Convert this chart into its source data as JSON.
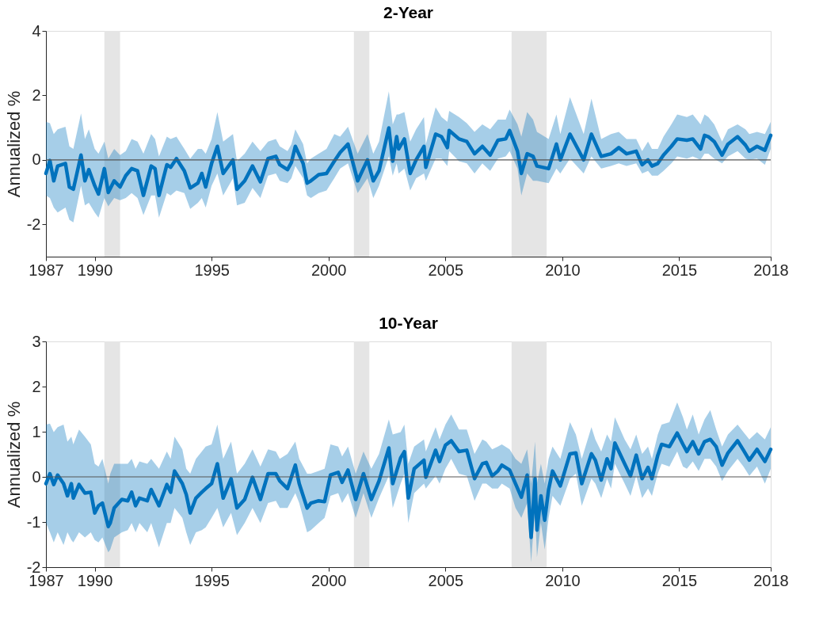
{
  "chart_data": [
    {
      "type": "line",
      "title": "2-Year",
      "ylabel": "Annualized %",
      "x": [
        "1987-12",
        "1988-02",
        "1988-04",
        "1988-06",
        "1988-10",
        "1988-12",
        "1989-02",
        "1989-06",
        "1989-08",
        "1989-10",
        "1990-01",
        "1990-03",
        "1990-06",
        "1990-08",
        "1990-11",
        "1991-02",
        "1991-05",
        "1991-08",
        "1991-11",
        "1992-02",
        "1992-06",
        "1992-08",
        "1992-10",
        "1993-02",
        "1993-04",
        "1993-07",
        "1993-11",
        "1994-02",
        "1994-06",
        "1994-08",
        "1994-10",
        "1995-01",
        "1995-04",
        "1995-07",
        "1995-12",
        "1996-02",
        "1996-06",
        "1996-10",
        "1997-02",
        "1997-06",
        "1997-10",
        "1997-12",
        "1998-04",
        "1998-06",
        "1998-08",
        "1998-12",
        "1999-02",
        "1999-04",
        "1999-08",
        "1999-12",
        "2000-04",
        "2000-07",
        "2000-11",
        "2001-04",
        "2001-09",
        "2001-12",
        "2002-03",
        "2002-08",
        "2002-10",
        "2002-12",
        "2003-01",
        "2003-04",
        "2003-07",
        "2003-10",
        "2004-02",
        "2004-03",
        "2004-08",
        "2004-11",
        "2005-02",
        "2005-03",
        "2005-08",
        "2005-12",
        "2006-04",
        "2006-08",
        "2006-12",
        "2007-04",
        "2007-08",
        "2007-10",
        "2008-02",
        "2008-04",
        "2008-07",
        "2008-10",
        "2008-12",
        "2009-06",
        "2009-10",
        "2009-12",
        "2010-05",
        "2010-12",
        "2011-04",
        "2011-09",
        "2012-02",
        "2012-06",
        "2012-10",
        "2013-03",
        "2013-06",
        "2013-09",
        "2013-11",
        "2014-02",
        "2014-05",
        "2014-09",
        "2014-12",
        "2015-05",
        "2015-08",
        "2015-12",
        "2016-02",
        "2016-04",
        "2016-07",
        "2016-11",
        "2017-02",
        "2017-07",
        "2017-11",
        "2018-01",
        "2018-05",
        "2018-09",
        "2018-12"
      ],
      "series": [
        {
          "color": "#0072bd",
          "values": [
            -0.42,
            -0.02,
            -0.65,
            -0.19,
            -0.11,
            -0.84,
            -0.91,
            0.15,
            -0.65,
            -0.3,
            -0.8,
            -1.06,
            -0.27,
            -1.01,
            -0.65,
            -0.84,
            -0.49,
            -0.27,
            -0.34,
            -1.1,
            -0.19,
            -0.27,
            -1.1,
            -0.15,
            -0.23,
            0.04,
            -0.34,
            -0.87,
            -0.72,
            -0.42,
            -0.84,
            -0.11,
            0.42,
            -0.42,
            0.0,
            -0.91,
            -0.65,
            -0.19,
            -0.68,
            0.04,
            0.11,
            -0.15,
            -0.3,
            -0.08,
            0.42,
            -0.11,
            -0.72,
            -0.65,
            -0.46,
            -0.42,
            -0.04,
            0.23,
            0.49,
            -0.65,
            0.0,
            -0.65,
            -0.34,
            0.99,
            -0.04,
            0.72,
            0.34,
            0.65,
            -0.42,
            0.0,
            0.42,
            -0.23,
            0.8,
            0.72,
            0.38,
            0.91,
            0.65,
            0.57,
            0.19,
            0.42,
            0.15,
            0.61,
            0.65,
            0.91,
            0.27,
            -0.42,
            0.19,
            0.11,
            -0.19,
            -0.27,
            0.49,
            0.0,
            0.8,
            0.0,
            0.8,
            0.11,
            0.19,
            0.38,
            0.19,
            0.27,
            -0.15,
            0.0,
            -0.19,
            -0.11,
            0.15,
            0.42,
            0.65,
            0.61,
            0.65,
            0.34,
            0.76,
            0.72,
            0.57,
            0.15,
            0.49,
            0.72,
            0.46,
            0.27,
            0.42,
            0.3,
            0.76
          ],
          "lower": [
            -1.1,
            -1.18,
            -1.48,
            -1.63,
            -1.48,
            -1.86,
            -1.94,
            -0.8,
            -1.41,
            -1.33,
            -1.63,
            -1.79,
            -1.18,
            -1.44,
            -1.18,
            -1.25,
            -1.18,
            -1.03,
            -1.18,
            -1.71,
            -1.1,
            -1.1,
            -1.79,
            -1.03,
            -1.1,
            -0.95,
            -1.03,
            -1.52,
            -1.33,
            -1.18,
            -1.48,
            -0.8,
            -0.42,
            -1.1,
            -0.57,
            -1.41,
            -1.33,
            -0.87,
            -1.18,
            -0.49,
            -0.42,
            -0.65,
            -0.72,
            -0.57,
            -0.19,
            -0.57,
            -1.1,
            -1.18,
            -1.03,
            -0.95,
            -0.57,
            -0.27,
            -0.11,
            -1.03,
            -0.57,
            -1.18,
            -0.8,
            0.11,
            -0.49,
            -0.11,
            -0.42,
            -0.27,
            -0.95,
            -0.57,
            -0.42,
            -0.65,
            0.04,
            0.04,
            -0.19,
            0.27,
            -0.04,
            -0.11,
            -0.42,
            -0.11,
            -0.34,
            0.04,
            0.11,
            0.27,
            -0.27,
            -1.1,
            -0.42,
            -0.65,
            -0.65,
            -0.72,
            -0.27,
            -0.42,
            0.04,
            -0.42,
            0.11,
            -0.27,
            -0.19,
            -0.11,
            -0.19,
            -0.11,
            -0.42,
            -0.34,
            -0.49,
            -0.49,
            -0.34,
            -0.11,
            0.11,
            0.04,
            0.11,
            0.0,
            0.19,
            0.19,
            0.04,
            -0.11,
            0.11,
            0.27,
            0.04,
            0.0,
            0.04,
            -0.15,
            0.34
          ],
          "upper": [
            1.18,
            1.14,
            0.8,
            0.95,
            1.03,
            0.42,
            0.34,
            1.44,
            0.65,
            0.95,
            0.34,
            0.19,
            0.57,
            0.04,
            0.34,
            0.15,
            0.27,
            0.65,
            0.57,
            0.19,
            0.8,
            0.65,
            0.11,
            0.72,
            0.65,
            0.72,
            0.34,
            0.04,
            0.34,
            0.34,
            0.19,
            0.65,
            1.48,
            0.57,
            0.8,
            -0.04,
            0.19,
            0.57,
            0.27,
            0.57,
            0.65,
            0.42,
            0.27,
            0.49,
            0.95,
            0.49,
            -0.11,
            0.04,
            0.19,
            0.34,
            0.8,
            0.72,
            1.03,
            0.19,
            0.8,
            0.19,
            0.57,
            2.13,
            1.1,
            1.41,
            1.41,
            1.48,
            0.57,
            0.95,
            1.33,
            0.49,
            1.63,
            1.33,
            1.18,
            1.52,
            1.33,
            1.14,
            0.87,
            1.1,
            0.95,
            1.25,
            1.25,
            1.56,
            1.1,
            0.72,
            1.48,
            1.25,
            0.87,
            0.65,
            1.41,
            0.8,
            1.94,
            0.8,
            1.9,
            0.65,
            0.8,
            0.87,
            0.65,
            0.65,
            0.27,
            0.57,
            0.34,
            0.34,
            0.72,
            1.1,
            1.41,
            1.33,
            1.41,
            1.1,
            1.41,
            1.33,
            1.1,
            0.57,
            0.95,
            1.1,
            0.95,
            0.8,
            0.87,
            0.8,
            1.18
          ]
        }
      ],
      "xlim": [
        "1987-12",
        "2018-12"
      ],
      "xticks": [
        {
          "value": "1987-12",
          "label": "1987"
        },
        "1990",
        "1995",
        "2000",
        "2005",
        "2010",
        "2015",
        {
          "value": "2018-12",
          "label": "2018"
        }
      ],
      "ylim": [
        -3,
        4
      ],
      "yticks": [
        -2,
        0,
        2,
        4
      ],
      "ref_lines": [
        {
          "axis": "y",
          "value": 0,
          "color": "#555555"
        }
      ],
      "bands": [
        {
          "axis": "x",
          "from": "1990-06",
          "to": "1991-02",
          "color": "#e5e5e5"
        },
        {
          "axis": "x",
          "from": "2001-02",
          "to": "2001-10",
          "color": "#e5e5e5"
        },
        {
          "axis": "x",
          "from": "2007-11",
          "to": "2009-05",
          "color": "#e5e5e5"
        }
      ],
      "grid": false
    },
    {
      "type": "line",
      "title": "10-Year",
      "ylabel": "Annualized %",
      "x": [
        "1987-12",
        "1988-02",
        "1988-04",
        "1988-06",
        "1988-09",
        "1988-11",
        "1989-01",
        "1989-02",
        "1989-05",
        "1989-08",
        "1989-11",
        "1990-01",
        "1990-03",
        "1990-05",
        "1990-08",
        "1990-09",
        "1990-11",
        "1991-03",
        "1991-06",
        "1991-08",
        "1991-10",
        "1991-12",
        "1992-04",
        "1992-06",
        "1992-10",
        "1993-02",
        "1993-04",
        "1993-06",
        "1993-10",
        "1993-12",
        "1994-02",
        "1994-05",
        "1994-08",
        "1994-10",
        "1995-01",
        "1995-04",
        "1995-07",
        "1995-11",
        "1996-02",
        "1996-06",
        "1996-10",
        "1997-02",
        "1997-06",
        "1997-10",
        "1997-12",
        "1998-04",
        "1998-08",
        "1998-10",
        "1999-02",
        "1999-04",
        "1999-08",
        "1999-11",
        "2000-02",
        "2000-06",
        "2000-08",
        "2000-11",
        "2001-03",
        "2001-07",
        "2001-11",
        "2002-03",
        "2002-08",
        "2002-10",
        "2003-02",
        "2003-04",
        "2003-06",
        "2003-09",
        "2004-02",
        "2004-03",
        "2004-08",
        "2004-10",
        "2005-01",
        "2005-04",
        "2005-08",
        "2005-12",
        "2006-04",
        "2006-08",
        "2006-10",
        "2007-01",
        "2007-04",
        "2007-06",
        "2007-10",
        "2008-01",
        "2008-04",
        "2008-07",
        "2008-09",
        "2008-11",
        "2008-12",
        "2009-02",
        "2009-04",
        "2009-06",
        "2009-08",
        "2009-12",
        "2010-05",
        "2010-08",
        "2010-11",
        "2011-04",
        "2011-06",
        "2011-09",
        "2011-12",
        "2012-02",
        "2012-04",
        "2012-09",
        "2012-12",
        "2013-03",
        "2013-06",
        "2013-09",
        "2013-11",
        "2014-02",
        "2014-04",
        "2014-08",
        "2014-12",
        "2015-03",
        "2015-05",
        "2015-08",
        "2015-11",
        "2016-02",
        "2016-05",
        "2016-08",
        "2016-11",
        "2017-02",
        "2017-07",
        "2017-10",
        "2018-01",
        "2018-05",
        "2018-09",
        "2018-12"
      ],
      "series": [
        {
          "color": "#0072bd",
          "values": [
            -0.15,
            0.07,
            -0.17,
            0.04,
            -0.15,
            -0.42,
            -0.15,
            -0.47,
            -0.17,
            -0.36,
            -0.34,
            -0.8,
            -0.64,
            -0.58,
            -1.1,
            -1.02,
            -0.69,
            -0.5,
            -0.53,
            -0.34,
            -0.64,
            -0.47,
            -0.53,
            -0.28,
            -0.64,
            -0.17,
            -0.34,
            0.13,
            -0.15,
            -0.39,
            -0.8,
            -0.47,
            -0.34,
            -0.26,
            -0.15,
            0.29,
            -0.47,
            -0.04,
            -0.69,
            -0.5,
            -0.01,
            -0.5,
            0.07,
            0.07,
            -0.09,
            -0.26,
            0.26,
            -0.15,
            -0.69,
            -0.58,
            -0.53,
            -0.55,
            0.04,
            0.1,
            -0.12,
            0.15,
            -0.5,
            0.07,
            -0.5,
            -0.09,
            0.64,
            -0.15,
            0.42,
            0.56,
            -0.47,
            0.18,
            0.37,
            -0.01,
            0.59,
            0.34,
            0.7,
            0.8,
            0.56,
            0.59,
            -0.04,
            0.29,
            0.32,
            0.02,
            0.13,
            0.26,
            0.15,
            -0.15,
            -0.45,
            0.04,
            -1.34,
            -0.04,
            -1.18,
            -0.42,
            -0.96,
            -0.28,
            0.13,
            -0.2,
            0.51,
            0.53,
            -0.15,
            0.51,
            0.37,
            -0.07,
            0.4,
            0.18,
            0.75,
            0.29,
            0.02,
            0.48,
            -0.04,
            0.21,
            -0.04,
            0.48,
            0.72,
            0.67,
            0.97,
            0.72,
            0.56,
            0.78,
            0.51,
            0.78,
            0.83,
            0.67,
            0.26,
            0.53,
            0.8,
            0.59,
            0.37,
            0.61,
            0.34,
            0.61
          ],
          "lower": [
            -1.02,
            -1.23,
            -1.45,
            -1.23,
            -1.51,
            -1.23,
            -1.4,
            -1.45,
            -1.23,
            -1.34,
            -1.23,
            -1.4,
            -1.45,
            -1.34,
            -1.67,
            -1.61,
            -1.34,
            -1.23,
            -1.18,
            -1.02,
            -1.23,
            -1.02,
            -1.23,
            -1.02,
            -1.56,
            -1.02,
            -1.02,
            -0.69,
            -0.91,
            -1.23,
            -1.51,
            -1.23,
            -1.18,
            -1.12,
            -0.91,
            -0.69,
            -1.12,
            -0.8,
            -1.29,
            -1.02,
            -0.69,
            -1.02,
            -0.58,
            -0.53,
            -0.69,
            -0.69,
            -0.36,
            -0.58,
            -1.23,
            -1.18,
            -1.02,
            -0.91,
            -0.42,
            -0.36,
            -0.58,
            -0.36,
            -0.91,
            -0.36,
            -0.91,
            -0.47,
            0.02,
            -0.69,
            -0.15,
            0.07,
            -1.02,
            -0.36,
            -0.15,
            -0.26,
            0.02,
            -0.15,
            0.18,
            0.4,
            0.07,
            0.02,
            -0.53,
            -0.15,
            -0.15,
            -0.26,
            -0.26,
            -0.15,
            -0.26,
            -0.69,
            -0.91,
            -0.58,
            -1.89,
            -0.69,
            -1.78,
            -1.02,
            -1.61,
            -0.91,
            -0.42,
            -0.64,
            -0.04,
            0.07,
            -0.64,
            -0.04,
            -0.15,
            -0.47,
            -0.04,
            -0.26,
            0.29,
            -0.15,
            -0.42,
            0.02,
            -0.47,
            -0.26,
            -0.42,
            0.07,
            0.29,
            0.23,
            0.56,
            0.23,
            0.18,
            0.34,
            0.13,
            0.4,
            0.4,
            0.23,
            -0.09,
            0.13,
            0.4,
            0.23,
            0.02,
            0.23,
            -0.15,
            0.18
          ],
          "upper": [
            1.16,
            1.18,
            0.99,
            1.1,
            1.16,
            0.78,
            0.89,
            0.72,
            1.05,
            0.89,
            0.72,
            0.29,
            0.23,
            0.4,
            -0.15,
            0.07,
            0.29,
            0.29,
            0.29,
            0.4,
            0.18,
            0.34,
            0.29,
            0.4,
            0.18,
            0.56,
            0.4,
            0.89,
            0.61,
            0.18,
            0.07,
            0.4,
            0.56,
            0.67,
            0.72,
            1.16,
            0.4,
            0.78,
            0.07,
            0.29,
            0.61,
            0.23,
            0.61,
            0.56,
            0.4,
            0.51,
            0.78,
            0.4,
            0.07,
            0.07,
            0.13,
            0.18,
            0.72,
            0.67,
            0.45,
            0.67,
            0.07,
            0.56,
            0.18,
            0.51,
            1.27,
            0.94,
            0.99,
            1.16,
            0.29,
            0.67,
            0.83,
            0.56,
            1.1,
            0.83,
            1.16,
            1.38,
            1.05,
            1.05,
            0.51,
            0.83,
            0.78,
            0.61,
            0.67,
            0.72,
            0.61,
            0.4,
            0.29,
            0.61,
            -0.15,
            0.78,
            -0.15,
            0.29,
            -0.15,
            0.4,
            0.67,
            0.4,
            1.21,
            0.94,
            0.4,
            1.1,
            0.83,
            0.56,
            0.94,
            0.78,
            1.32,
            0.83,
            0.61,
            0.94,
            0.51,
            0.67,
            0.4,
            0.94,
            1.16,
            1.21,
            1.65,
            1.32,
            1.05,
            1.38,
            0.94,
            1.27,
            1.48,
            1.05,
            0.67,
            0.94,
            1.16,
            0.99,
            0.83,
            0.99,
            0.83,
            1.1
          ]
        }
      ],
      "xlim": [
        "1987-12",
        "2018-12"
      ],
      "xticks": [
        {
          "value": "1987-12",
          "label": "1987"
        },
        "1990",
        "1995",
        "2000",
        "2005",
        "2010",
        "2015",
        {
          "value": "2018-12",
          "label": "2018"
        }
      ],
      "ylim": [
        -2,
        3
      ],
      "yticks": [
        -2,
        -1,
        0,
        1,
        2,
        3
      ],
      "ref_lines": [
        {
          "axis": "y",
          "value": 0,
          "color": "#555555"
        }
      ],
      "bands": [
        {
          "axis": "x",
          "from": "1990-06",
          "to": "1991-02",
          "color": "#e5e5e5"
        },
        {
          "axis": "x",
          "from": "2001-02",
          "to": "2001-10",
          "color": "#e5e5e5"
        },
        {
          "axis": "x",
          "from": "2007-11",
          "to": "2009-05",
          "color": "#e5e5e5"
        }
      ],
      "grid": false
    }
  ]
}
